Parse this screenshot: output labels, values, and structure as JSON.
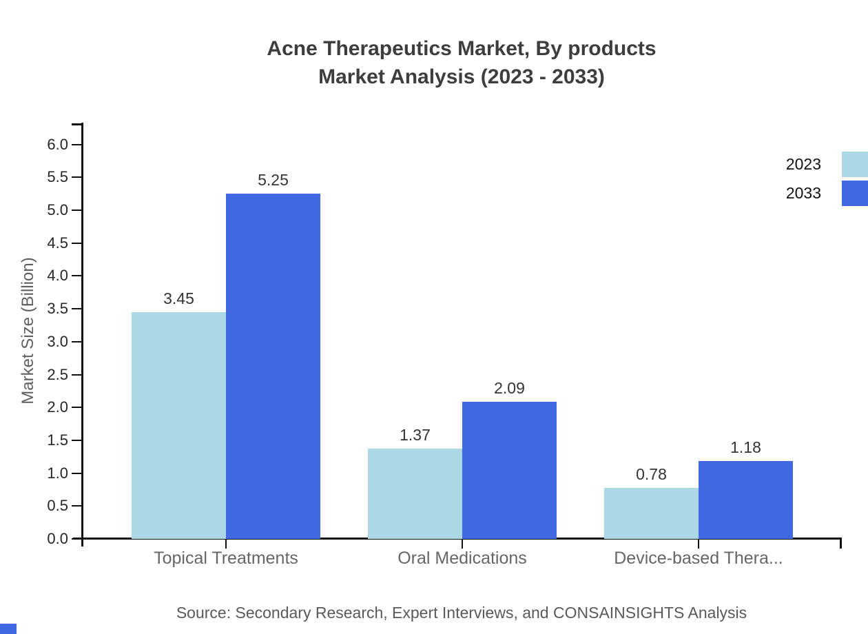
{
  "title": {
    "line1": "Acne Therapeutics Market, By products",
    "line2": "Market Analysis (2023 - 2033)"
  },
  "source_note": "Source: Secondary Research, Expert Interviews, and CONSAINSIGHTS Analysis",
  "colors": {
    "series_2023": "#add8e6",
    "series_2033": "#4169e1",
    "axis": "#111111",
    "title_text": "#3d3d3d",
    "category_text": "#666666",
    "tick_text": "#262626",
    "value_text": "#333333",
    "source_text": "#595959"
  },
  "chart_data": {
    "type": "bar",
    "title": "Acne Therapeutics Market, By products Market Analysis (2023 - 2033)",
    "categories": [
      "Topical Treatments",
      "Oral Medications",
      "Device-based Thera..."
    ],
    "series": [
      {
        "name": "2023",
        "color": "#add8e6",
        "values": [
          3.45,
          1.37,
          0.78
        ]
      },
      {
        "name": "2033",
        "color": "#4169e1",
        "values": [
          5.25,
          2.09,
          1.18
        ]
      }
    ],
    "xlabel": "",
    "ylabel": "Market Size (Billion)",
    "ylim": [
      0.0,
      6.0
    ],
    "ytick_step": 0.5,
    "grid": false,
    "legend_position": "top-right",
    "value_labels": true
  }
}
